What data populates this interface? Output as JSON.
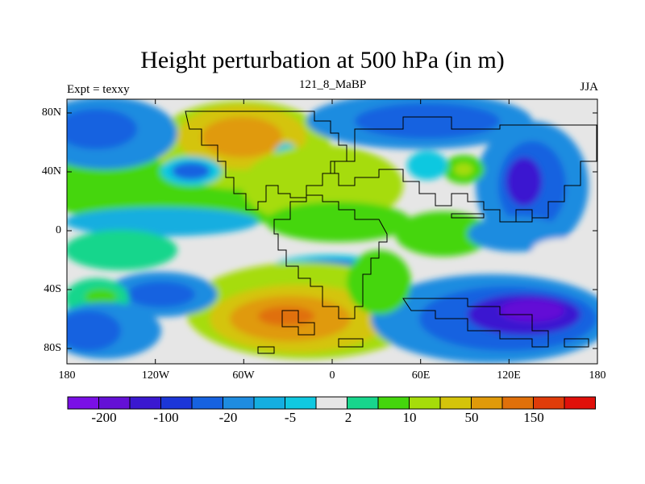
{
  "title": "Height perturbation at 500 hPa (in m)",
  "left_string": "Expt = texxy",
  "center_string": "121_8_MaBP",
  "right_string": "JJA",
  "map": {
    "projection": "cylindrical equidistant",
    "lon_range": [
      -180,
      180
    ],
    "lat_range": [
      -90,
      90
    ],
    "lat_labels": [
      "80N",
      "40N",
      "0",
      "40S",
      "80S"
    ],
    "lon_labels": [
      "180",
      "120W",
      "60W",
      "0",
      "60E",
      "120E",
      "180"
    ],
    "fill_type": "filled contours",
    "coastlines": "coarse grid outline"
  },
  "colorbar": {
    "colors": [
      "#7a0fe6",
      "#6410d6",
      "#3a18d0",
      "#1c36d8",
      "#1662e0",
      "#1e8ce0",
      "#14aee0",
      "#10c8e0",
      "#e6e6e6",
      "#18d68c",
      "#44d60c",
      "#a6dc0a",
      "#d4c40a",
      "#e09a0a",
      "#e0700a",
      "#e03c0a",
      "#e0100a"
    ],
    "labels": [
      "-200",
      "-100",
      "-20",
      "-5",
      "2",
      "10",
      "50",
      "150"
    ]
  }
}
